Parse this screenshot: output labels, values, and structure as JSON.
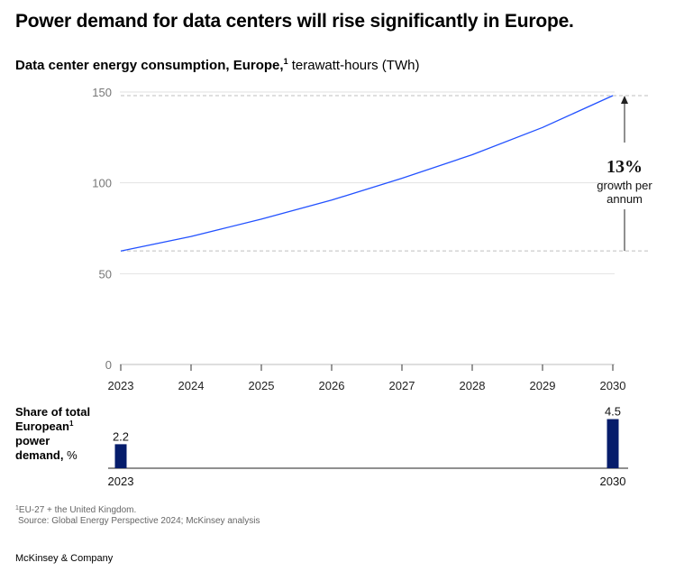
{
  "title": "Power demand for data centers will rise significantly in Europe.",
  "subtitle": {
    "bold": "Data center energy consumption, Europe,",
    "footnote_mark": "1",
    "unit": " terawatt-hours (TWh)"
  },
  "chart_data": [
    {
      "type": "line",
      "title": "Data center energy consumption, Europe, terawatt-hours (TWh)",
      "x": [
        "2023",
        "2024",
        "2025",
        "2026",
        "2027",
        "2028",
        "2029",
        "2030"
      ],
      "values": [
        62.5,
        70.5,
        80,
        90.5,
        102.5,
        115.5,
        130.5,
        148
      ],
      "ylim": [
        0,
        150
      ],
      "yticks": [
        "0",
        "50",
        "100",
        "150"
      ],
      "annotation": {
        "value": "13%",
        "text_line1": "growth per",
        "text_line2": "annum"
      },
      "colors": {
        "line": "#2251ff",
        "grid": "#e2e2e2",
        "reference": "#bfbfbf"
      }
    },
    {
      "type": "bar",
      "title": "Share of total European power demand, %",
      "categories": [
        "2023",
        "2030"
      ],
      "values": [
        2.2,
        4.5
      ],
      "value_labels": [
        "2.2",
        "4.5"
      ],
      "colors": {
        "bar": "#051c6b"
      }
    }
  ],
  "share_label": {
    "line1": "Share of total",
    "line2": "European",
    "footnote_mark": "1",
    "line3": "power",
    "line4": "demand,",
    "unit": " %"
  },
  "footnotes": {
    "mark": "1",
    "note": "EU-27 + the United Kingdom.",
    "source": "Source: Global Energy Perspective 2024; McKinsey analysis"
  },
  "brand": "McKinsey & Company"
}
